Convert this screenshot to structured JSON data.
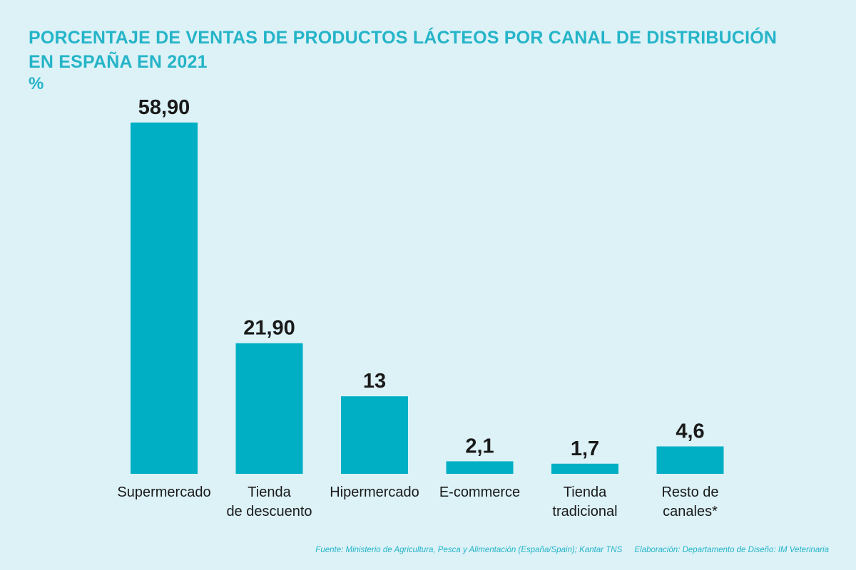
{
  "header": {
    "title_line1": "PORCENTAJE DE VENTAS DE PRODUCTOS LÁCTEOS POR CANAL DE DISTRIBUCIÓN",
    "title_line2": "EN ESPAÑA EN 2021",
    "unit": "%"
  },
  "footer": {
    "source": "Fuente: Ministerio de Agricultura, Pesca y Alimentación (España/Spain); Kantar TNS",
    "credit": "Elaboración: Departamento de Diseño: IM Veterinaria"
  },
  "colors": {
    "bar": "#00afc4",
    "title": "#25b4c8",
    "background": "#dcf2f7"
  },
  "chart_data": {
    "type": "bar",
    "title": "PORCENTAJE DE VENTAS DE PRODUCTOS LÁCTEOS POR CANAL DE DISTRIBUCIÓN EN ESPAÑA EN 2021",
    "ylabel": "%",
    "xlabel": "",
    "grid": false,
    "categories": [
      [
        "Supermercado"
      ],
      [
        "Tienda",
        "de descuento"
      ],
      [
        "Hipermercado"
      ],
      [
        "E-commerce"
      ],
      [
        "Tienda",
        "tradicional"
      ],
      [
        "Resto de",
        "canales*"
      ]
    ],
    "values": [
      58.9,
      21.9,
      13,
      2.1,
      1.7,
      4.6
    ],
    "value_labels": [
      "58,90",
      "21,90",
      "13",
      "2,1",
      "1,7",
      "4,6"
    ],
    "ylim": [
      0,
      58.9
    ]
  }
}
